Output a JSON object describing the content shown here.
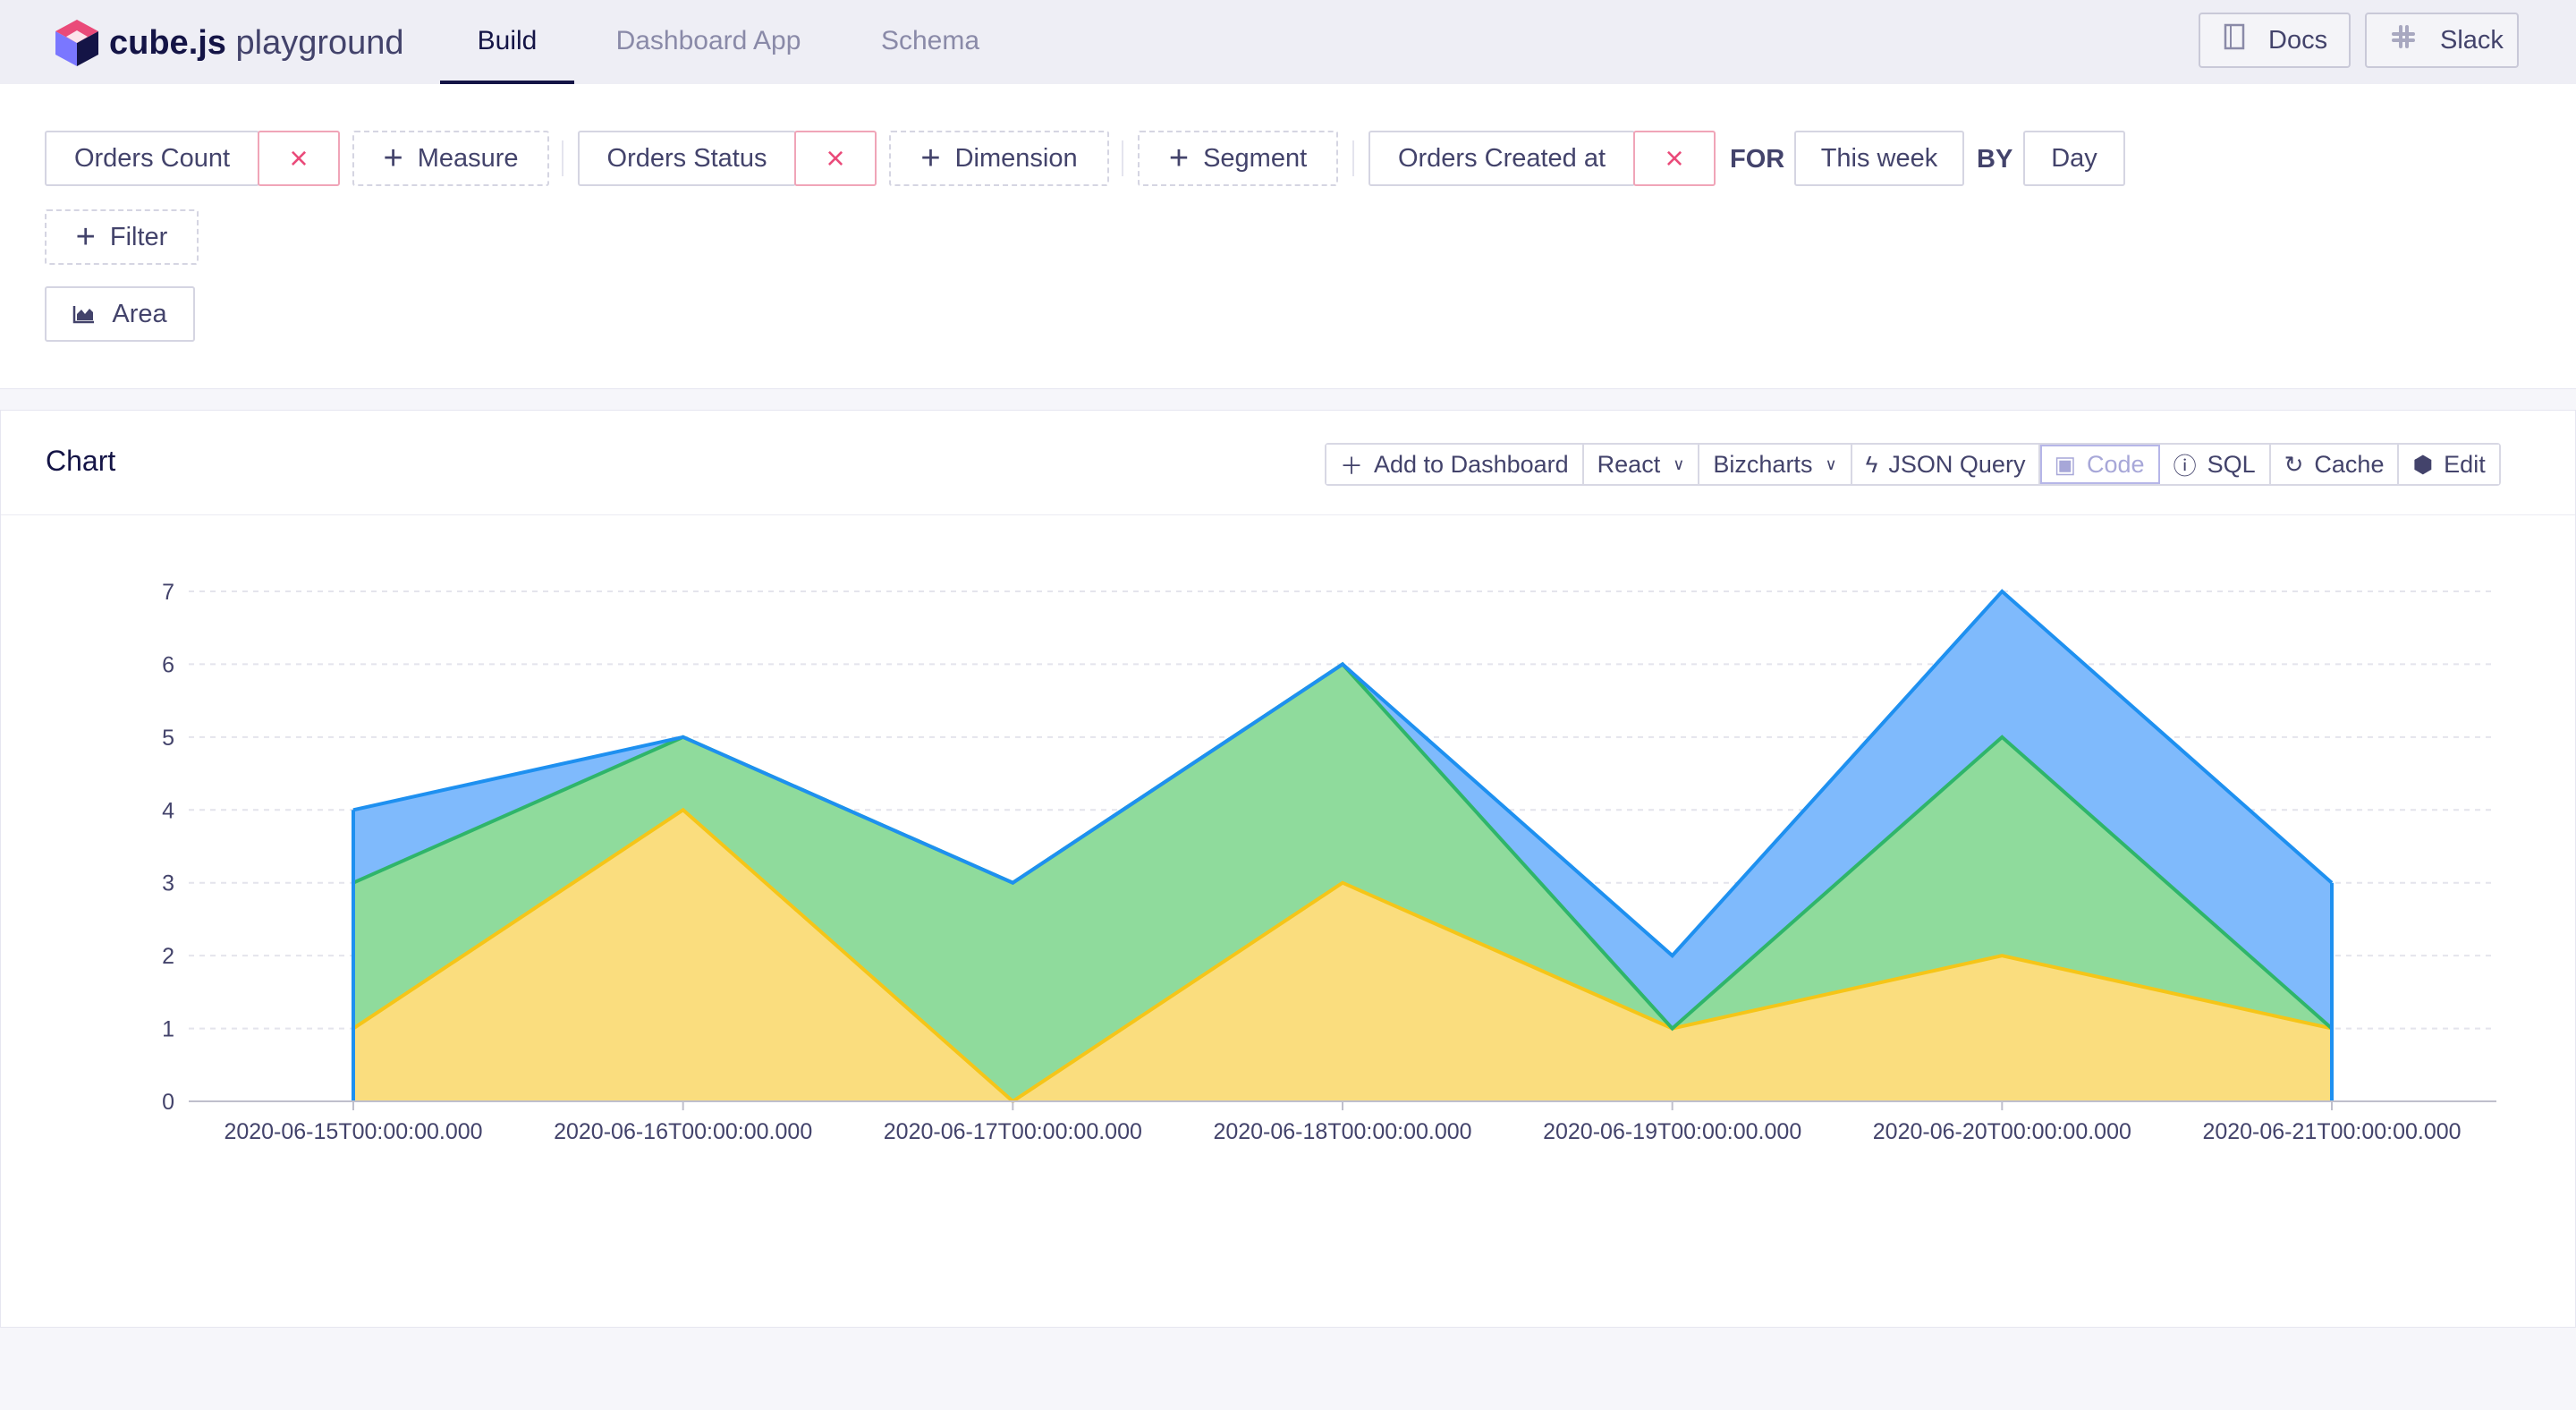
{
  "brand": {
    "name_bold": "cube.js",
    "name_light": " playground"
  },
  "nav": {
    "tabs": [
      {
        "label": "Build"
      },
      {
        "label": "Dashboard App"
      },
      {
        "label": "Schema"
      }
    ]
  },
  "header_buttons": {
    "docs": "Docs",
    "slack": "Slack"
  },
  "query": {
    "measure_value": "Orders Count",
    "measure_add": "Measure",
    "dimension_value": "Orders Status",
    "dimension_add": "Dimension",
    "segment_add": "Segment",
    "time_value": "Orders Created at",
    "for_label": "FOR",
    "date_range": "This week",
    "by_label": "BY",
    "granularity": "Day",
    "filter_add": "Filter",
    "chart_type": "Area",
    "remove_symbol": "×"
  },
  "chart_card": {
    "title": "Chart",
    "toolbar": {
      "add_to_dashboard": "Add to Dashboard",
      "framework": "React",
      "library": "Bizcharts",
      "json_query": "JSON Query",
      "code": "Code",
      "sql": "SQL",
      "cache": "Cache",
      "edit": "Edit"
    }
  },
  "chart_data": {
    "type": "area",
    "stacked": true,
    "x": [
      "2020-06-15T00:00:00.000",
      "2020-06-16T00:00:00.000",
      "2020-06-17T00:00:00.000",
      "2020-06-18T00:00:00.000",
      "2020-06-19T00:00:00.000",
      "2020-06-20T00:00:00.000",
      "2020-06-21T00:00:00.000"
    ],
    "series": [
      {
        "color": "#fadd7e",
        "stroke": "#f5c518",
        "values": [
          1,
          4,
          0,
          3,
          1,
          2,
          1
        ]
      },
      {
        "color": "#8fdb9c",
        "stroke": "#2fb56a",
        "values": [
          2,
          1,
          3,
          3,
          0,
          3,
          0
        ]
      },
      {
        "color": "#7fbafc",
        "stroke": "#1e90f0",
        "values": [
          1,
          0,
          0,
          0,
          1,
          2,
          2
        ]
      }
    ],
    "ylim": [
      0,
      7
    ],
    "yticks": [
      0,
      1,
      2,
      3,
      4,
      5,
      6,
      7
    ],
    "grid": true
  }
}
